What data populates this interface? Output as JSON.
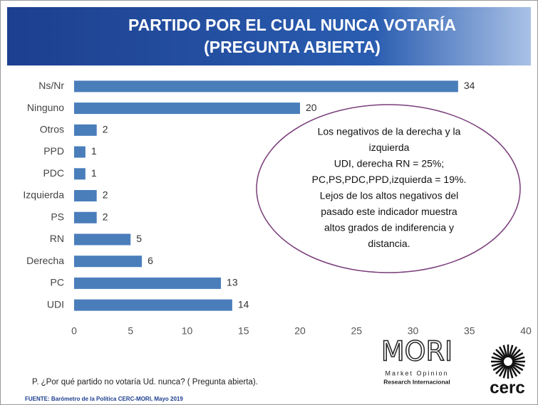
{
  "chart_data": {
    "type": "bar",
    "orientation": "horizontal",
    "title": [
      "PARTIDO POR EL CUAL NUNCA VOTARÍA",
      "(PREGUNTA ABIERTA)"
    ],
    "categories": [
      "Ns/Nr",
      "Ninguno",
      "Otros",
      "PPD",
      "PDC",
      "Izquierda",
      "PS",
      "RN",
      "Derecha",
      "PC",
      "UDI"
    ],
    "values": [
      34,
      20,
      2,
      1,
      1,
      2,
      2,
      5,
      6,
      13,
      14
    ],
    "color": "#4a7ebb",
    "xlim": [
      0,
      40
    ],
    "xticks": [
      0,
      5,
      10,
      15,
      20,
      25,
      30,
      35,
      40
    ],
    "grid": false,
    "annotation": [
      "Los negativos de la derecha y la",
      "izquierda",
      "UDI, derecha RN = 25%;",
      "PC,PS,PDC,PPD,izquierda = 19%.",
      "Lejos de los altos negativos del",
      "pasado este indicador muestra",
      "altos grados de indiferencia y",
      "distancia."
    ],
    "note": "P. ¿Por qué partido no votaría Ud. nunca? ( Pregunta abierta).",
    "source": "FUENTE: Barómetro de la Política CERC-MORI, Mayo 2019",
    "logos": {
      "mori": "MORI",
      "tagline": [
        "Market Opinion",
        "Research Internacional"
      ],
      "cerc": "cerc"
    }
  }
}
